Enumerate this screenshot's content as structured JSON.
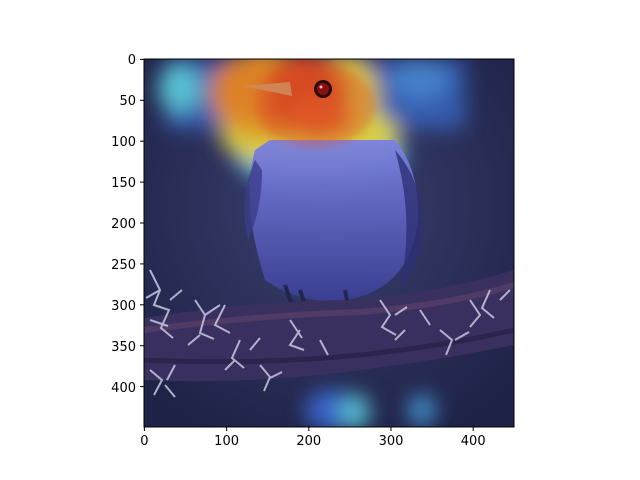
{
  "image_plot": {
    "description_type": "attention heatmap overlay on photograph",
    "subject": "small bird perched on a lichen-covered branch",
    "colormap": "jet",
    "x_ticks": [
      "0",
      "100",
      "200",
      "300",
      "400"
    ],
    "y_ticks": [
      "0",
      "50",
      "100",
      "150",
      "200",
      "250",
      "300",
      "350",
      "400"
    ]
  },
  "colors": {
    "background": "#2a2f55",
    "bird_body": "#5a62c8",
    "branch": "#3a2f55",
    "lichen": "#c9c9e2",
    "heat_red": "#e3241c",
    "heat_orange": "#f28a1e",
    "heat_yellow": "#f0e23a",
    "heat_cyan": "#5fd8e8",
    "heat_blue": "#3c6fe0"
  }
}
